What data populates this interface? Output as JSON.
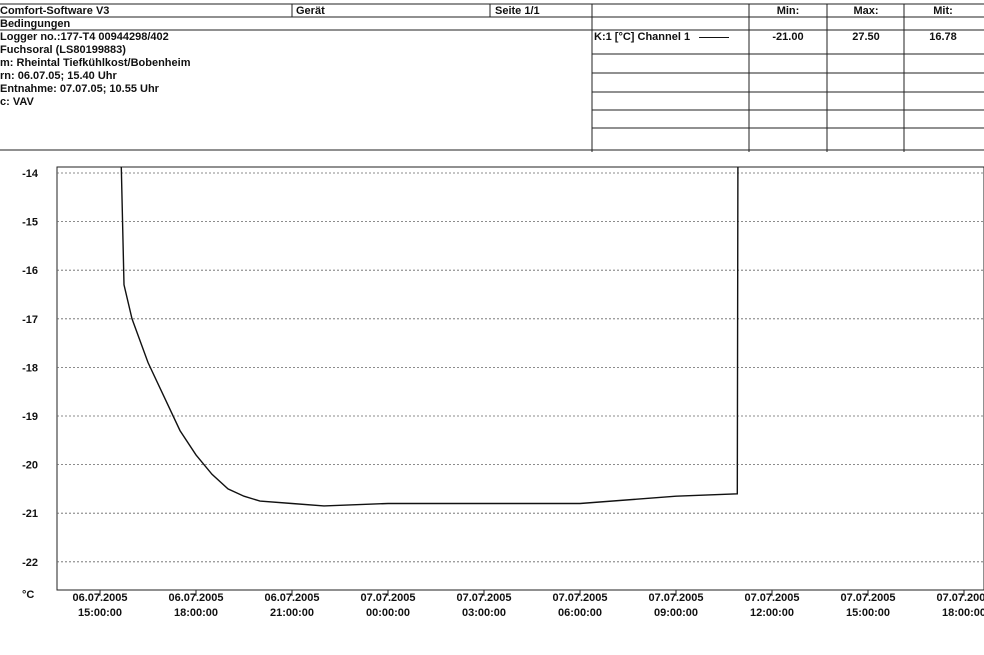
{
  "header": {
    "title": "Comfort-Software V3",
    "device": "Gerät",
    "page": "Seite 1/1",
    "conditions": "Bedingungen",
    "lines": [
      "Logger no.:177-T4 00944298/402",
      "Fuchsoral (LS80199883)",
      "m: Rheintal Tiefkühlkost/Bobenheim",
      "rn: 06.07.05; 15.40 Uhr",
      "Entnahme: 07.07.05; 10.55 Uhr",
      "c: VAV"
    ]
  },
  "stats": {
    "channel_label": "K:1 [°C] Channel 1",
    "min_label": "Min:",
    "max_label": "Max:",
    "avg_label": "Mit:",
    "min": "-21.00",
    "max": "27.50",
    "avg": "16.78"
  },
  "chart_data": {
    "type": "line",
    "ylabel": "°C",
    "ylim": [
      -23.1,
      -13.8
    ],
    "yticks": [
      -14,
      -15,
      -16,
      -17,
      -18,
      -19,
      -20,
      -21,
      -22
    ],
    "xticks": [
      [
        "06.07.2005",
        "15:00:00"
      ],
      [
        "06.07.2005",
        "18:00:00"
      ],
      [
        "06.07.2005",
        "21:00:00"
      ],
      [
        "07.07.2005",
        "00:00:00"
      ],
      [
        "07.07.2005",
        "03:00:00"
      ],
      [
        "07.07.2005",
        "06:00:00"
      ],
      [
        "07.07.2005",
        "09:00:00"
      ],
      [
        "07.07.2005",
        "12:00:00"
      ],
      [
        "07.07.2005",
        "15:00:00"
      ],
      [
        "07.07.2005",
        "18:00:00"
      ]
    ],
    "grid": true,
    "series": [
      {
        "x": [
          "06.07.2005 15:40",
          "06.07.2005 15:45",
          "06.07.2005 16:00",
          "06.07.2005 16:30",
          "06.07.2005 17:00",
          "06.07.2005 17:30",
          "06.07.2005 18:00",
          "06.07.2005 18:30",
          "06.07.2005 19:00",
          "06.07.2005 19:30",
          "06.07.2005 20:00",
          "06.07.2005 21:00",
          "06.07.2005 22:00",
          "07.07.2005 00:00",
          "07.07.2005 03:00",
          "07.07.2005 06:00",
          "07.07.2005 09:00",
          "07.07.2005 10:55",
          "07.07.2005 10:56"
        ],
        "y": [
          -13.8,
          -16.3,
          -17.0,
          -17.9,
          -18.6,
          -19.3,
          -19.8,
          -20.2,
          -20.5,
          -20.65,
          -20.75,
          -20.8,
          -20.85,
          -20.8,
          -20.8,
          -20.8,
          -20.65,
          -20.6,
          -13.8
        ]
      }
    ]
  }
}
